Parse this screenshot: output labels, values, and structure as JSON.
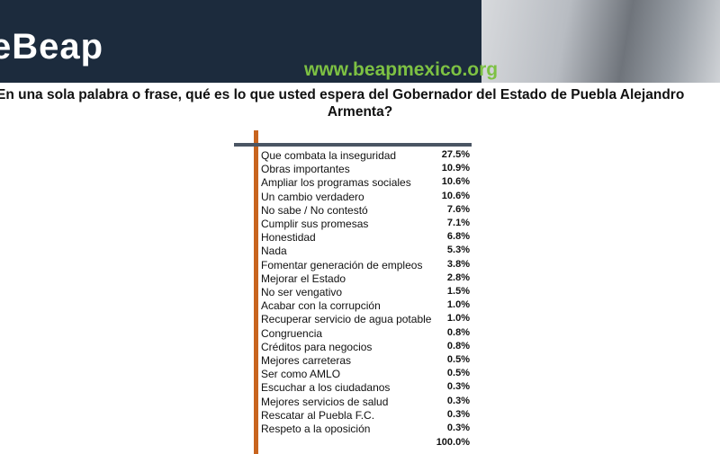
{
  "header": {
    "logo": "eBeap",
    "url": "www.beapmexico.org"
  },
  "title": {
    "line1": "En una sola palabra o frase, qué es lo que usted espera del Gobernador del Estado de Puebla Alejandro",
    "line2": "Armenta?"
  },
  "table": {
    "rows": [
      [
        "Que combata la inseguridad",
        "27.5%"
      ],
      [
        "Obras importantes",
        "10.9%"
      ],
      [
        "Ampliar los programas sociales",
        "10.6%"
      ],
      [
        "Un cambio verdadero",
        "10.6%"
      ],
      [
        "No sabe / No contestó",
        "7.6%"
      ],
      [
        "Cumplir sus promesas",
        "7.1%"
      ],
      [
        "Honestidad",
        "6.8%"
      ],
      [
        "Nada",
        "5.3%"
      ],
      [
        "Fomentar generación de empleos",
        "3.8%"
      ],
      [
        "Mejorar el Estado",
        "2.8%"
      ],
      [
        "No ser vengativo",
        "1.5%"
      ],
      [
        "Acabar con la corrupción",
        "1.0%"
      ],
      [
        "Recuperar servicio de agua potable",
        "1.0%"
      ],
      [
        "Congruencia",
        "0.8%"
      ],
      [
        "Créditos para negocios",
        "0.8%"
      ],
      [
        "Mejores carreteras",
        "0.5%"
      ],
      [
        "Ser como AMLO",
        "0.5%"
      ],
      [
        "Escuchar a los ciudadanos",
        "0.3%"
      ],
      [
        "Mejores servicios de salud",
        "0.3%"
      ],
      [
        "Rescatar al Puebla F.C.",
        "0.3%"
      ],
      [
        "Respeto a la oposición",
        "0.3%"
      ]
    ],
    "total": "100.0%"
  }
}
